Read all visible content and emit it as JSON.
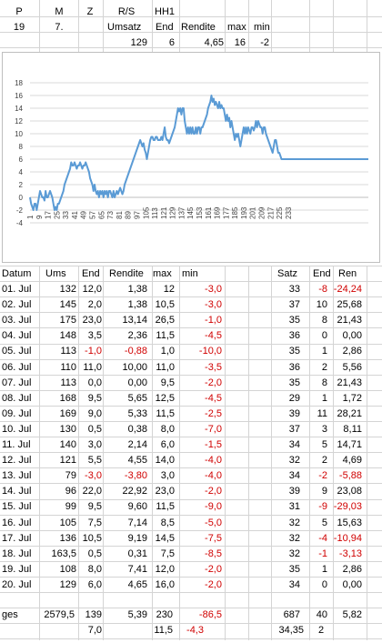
{
  "header": {
    "row1": {
      "p": "P",
      "m": "M",
      "z": "Z",
      "rs": "R/S",
      "hh": "HH1"
    },
    "row2": {
      "p": "19",
      "m": "7.",
      "z": "",
      "rs": "Umsatz",
      "hh": "End",
      "rendite": "Rendite",
      "max": "max",
      "min": "min"
    },
    "row3": {
      "umsatz": "129",
      "end": "6",
      "rendite": "4,65",
      "max": "16",
      "min": "-2"
    }
  },
  "chart_data": {
    "type": "line",
    "color": "#5b9bd5",
    "ylim": [
      -4,
      18
    ],
    "yticks": [
      "-4",
      "-2",
      "0",
      "2",
      "4",
      "6",
      "8",
      "10",
      "12",
      "14",
      "16",
      "18"
    ],
    "xticks": [
      "1",
      "9",
      "17",
      "25",
      "33",
      "41",
      "49",
      "57",
      "65",
      "73",
      "81",
      "89",
      "97",
      "105",
      "113",
      "121",
      "129",
      "137",
      "145",
      "153",
      "161",
      "169",
      "177",
      "185",
      "193",
      "201",
      "209",
      "217",
      "225",
      "233"
    ],
    "x_start": 1,
    "y": [
      0,
      -1,
      -1.5,
      -2,
      -1,
      -1,
      -2,
      -1,
      0,
      1,
      0.5,
      0,
      0,
      -0.5,
      1,
      0,
      0,
      0.5,
      1,
      0.5,
      0,
      -1,
      -2,
      -1.5,
      -2,
      -1,
      -1,
      -0.5,
      0,
      0.5,
      1,
      2,
      2.5,
      3,
      3.5,
      4,
      4.5,
      5.5,
      5,
      5,
      5.5,
      5,
      4.5,
      5,
      5,
      5.5,
      5,
      4.5,
      5,
      5,
      5.5,
      5,
      4.5,
      4,
      3,
      2.5,
      2,
      1,
      2,
      1,
      0.5,
      1,
      0,
      1,
      0.5,
      1,
      0,
      1,
      0.5,
      1,
      0,
      1,
      1,
      0.5,
      0,
      1,
      0,
      0.5,
      1,
      0.5,
      1,
      1.5,
      1,
      0.5,
      1,
      2,
      2.5,
      3,
      3.5,
      4,
      4.5,
      5,
      5.5,
      6,
      6.5,
      7,
      7.5,
      8,
      8.5,
      9,
      8.5,
      8,
      8.5,
      7.5,
      7,
      6,
      7,
      8,
      9,
      9.5,
      9.5,
      9,
      9,
      9.5,
      9.5,
      9,
      9,
      9,
      9.5,
      9,
      10,
      11,
      9.5,
      9,
      9,
      8.5,
      9,
      9.5,
      10,
      10.5,
      11,
      12,
      13,
      14,
      13.5,
      14,
      13,
      14,
      14,
      12,
      11,
      10,
      11,
      10,
      11,
      10,
      11,
      10,
      10,
      11,
      10,
      11,
      11,
      10,
      11,
      11,
      11.5,
      12,
      12.5,
      13,
      14,
      14.5,
      15,
      16,
      15,
      15.5,
      14.5,
      15,
      14.5,
      14,
      15,
      14,
      14.5,
      14,
      14,
      13,
      12,
      13,
      12,
      12.5,
      11,
      12,
      11,
      10,
      9,
      10,
      9.5,
      10,
      9,
      8,
      9,
      10,
      11,
      10,
      11,
      10,
      11,
      10.5,
      10,
      11,
      11,
      10.5,
      11,
      12,
      11,
      12,
      11.5,
      11,
      11,
      10,
      11,
      11,
      10,
      9.5,
      9,
      8.5,
      8,
      7.5,
      7,
      8,
      9,
      9,
      8,
      7,
      7,
      6.5,
      6,
      6,
      6,
      6,
      6,
      6,
      6,
      6,
      6,
      6,
      6,
      6,
      6,
      6,
      6,
      6,
      6,
      6,
      6,
      6,
      6,
      6,
      6,
      6,
      6,
      6,
      6,
      6,
      6,
      6,
      6,
      6,
      6,
      6,
      6,
      6,
      6,
      6,
      6,
      6,
      6,
      6,
      6,
      6,
      6,
      6,
      6,
      6,
      6,
      6,
      6,
      6,
      6,
      6,
      6,
      6,
      6,
      6,
      6,
      6,
      6,
      6,
      6,
      6,
      6,
      6,
      6,
      6,
      6,
      6,
      6,
      6,
      6,
      6,
      6,
      6,
      6,
      6,
      6
    ]
  },
  "table": {
    "headers": {
      "datum": "Datum",
      "ums": "Ums",
      "end": "End",
      "rendite": "Rendite",
      "max": "max",
      "min": "min",
      "satz": "Satz",
      "end2": "End",
      "ren": "Ren"
    },
    "rows": [
      {
        "datum": "01. Jul",
        "ums": "132",
        "end": "12,0",
        "rendite": "1,38",
        "max": "12",
        "min": "-3,0",
        "satz": "33",
        "end2": "-8",
        "ren": "-24,24"
      },
      {
        "datum": "02. Jul",
        "ums": "145",
        "end": "2,0",
        "rendite": "1,38",
        "max": "10,5",
        "min": "-3,0",
        "satz": "37",
        "end2": "10",
        "ren": "25,68"
      },
      {
        "datum": "03. Jul",
        "ums": "175",
        "end": "23,0",
        "rendite": "13,14",
        "max": "26,5",
        "min": "-1,0",
        "satz": "35",
        "end2": "8",
        "ren": "21,43"
      },
      {
        "datum": "04. Jul",
        "ums": "148",
        "end": "3,5",
        "rendite": "2,36",
        "max": "11,5",
        "min": "-4,5",
        "satz": "36",
        "end2": "0",
        "ren": "0,00"
      },
      {
        "datum": "05. Jul",
        "ums": "113",
        "end": "-1,0",
        "rendite": "-0,88",
        "max": "1,0",
        "min": "-10,0",
        "satz": "35",
        "end2": "1",
        "ren": "2,86"
      },
      {
        "datum": "06. Jul",
        "ums": "110",
        "end": "11,0",
        "rendite": "10,00",
        "max": "11,0",
        "min": "-3,5",
        "satz": "36",
        "end2": "2",
        "ren": "5,56"
      },
      {
        "datum": "07. Jul",
        "ums": "113",
        "end": "0,0",
        "rendite": "0,00",
        "max": "9,5",
        "min": "-2,0",
        "satz": "35",
        "end2": "8",
        "ren": "21,43"
      },
      {
        "datum": "08. Jul",
        "ums": "168",
        "end": "9,5",
        "rendite": "5,65",
        "max": "12,5",
        "min": "-4,5",
        "satz": "29",
        "end2": "1",
        "ren": "1,72"
      },
      {
        "datum": "09. Jul",
        "ums": "169",
        "end": "9,0",
        "rendite": "5,33",
        "max": "11,5",
        "min": "-2,5",
        "satz": "39",
        "end2": "11",
        "ren": "28,21"
      },
      {
        "datum": "10. Jul",
        "ums": "130",
        "end": "0,5",
        "rendite": "0,38",
        "max": "8,0",
        "min": "-7,0",
        "satz": "37",
        "end2": "3",
        "ren": "8,11"
      },
      {
        "datum": "11. Jul",
        "ums": "140",
        "end": "3,0",
        "rendite": "2,14",
        "max": "6,0",
        "min": "-1,5",
        "satz": "34",
        "end2": "5",
        "ren": "14,71"
      },
      {
        "datum": "12. Jul",
        "ums": "121",
        "end": "5,5",
        "rendite": "4,55",
        "max": "14,0",
        "min": "-4,0",
        "satz": "32",
        "end2": "2",
        "ren": "4,69"
      },
      {
        "datum": "13. Jul",
        "ums": "79",
        "end": "-3,0",
        "rendite": "-3,80",
        "max": "3,0",
        "min": "-4,0",
        "satz": "34",
        "end2": "-2",
        "ren": "-5,88"
      },
      {
        "datum": "14. Jul",
        "ums": "96",
        "end": "22,0",
        "rendite": "22,92",
        "max": "23,0",
        "min": "-2,0",
        "satz": "39",
        "end2": "9",
        "ren": "23,08"
      },
      {
        "datum": "15. Jul",
        "ums": "99",
        "end": "9,5",
        "rendite": "9,60",
        "max": "11,5",
        "min": "-9,0",
        "satz": "31",
        "end2": "-9",
        "ren": "-29,03"
      },
      {
        "datum": "16. Jul",
        "ums": "105",
        "end": "7,5",
        "rendite": "7,14",
        "max": "8,5",
        "min": "-5,0",
        "satz": "32",
        "end2": "5",
        "ren": "15,63"
      },
      {
        "datum": "17. Jul",
        "ums": "136",
        "end": "10,5",
        "rendite": "9,19",
        "max": "14,5",
        "min": "-7,5",
        "satz": "32",
        "end2": "-4",
        "ren": "-10,94"
      },
      {
        "datum": "18. Jul",
        "ums": "163,5",
        "end": "0,5",
        "rendite": "0,31",
        "max": "7,5",
        "min": "-8,5",
        "satz": "32",
        "end2": "-1",
        "ren": "-3,13"
      },
      {
        "datum": "19. Jul",
        "ums": "108",
        "end": "8,0",
        "rendite": "7,41",
        "max": "12,0",
        "min": "-2,0",
        "satz": "35",
        "end2": "1",
        "ren": "2,86"
      },
      {
        "datum": "20. Jul",
        "ums": "129",
        "end": "6,0",
        "rendite": "4,65",
        "max": "16,0",
        "min": "-2,0",
        "satz": "34",
        "end2": "0",
        "ren": "0,00"
      }
    ],
    "totals": {
      "label": "ges",
      "ums": "2579,5",
      "end": "139",
      "rendite": "5,39",
      "max": "230",
      "min": "-86,5",
      "satz": "687",
      "end2": "40",
      "ren": "5,82"
    },
    "averages": {
      "end": "7,0",
      "max": "11,5",
      "min": "-4,3",
      "satz": "34,35",
      "end2": "2"
    }
  },
  "colors": {
    "negative": "#d00000",
    "line": "#5b9bd5",
    "grid": "#d4d4d4"
  }
}
